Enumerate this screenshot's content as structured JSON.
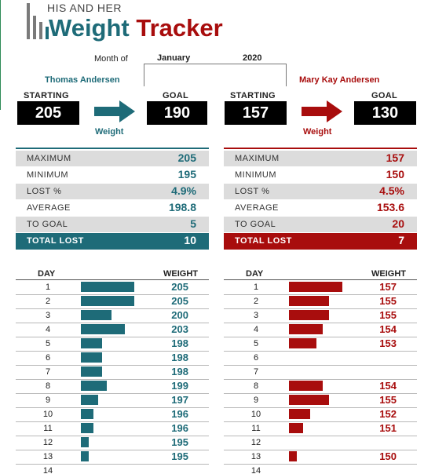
{
  "header": {
    "subtitle": "HIS AND HER",
    "title_word1": "Weight",
    "title_word2": "Tracker",
    "month_label": "Month of",
    "month": "January",
    "year": "2020"
  },
  "colors": {
    "his": "#1e6b78",
    "her": "#a80d0d"
  },
  "his": {
    "name": "Thomas Andersen",
    "starting_label": "STARTING",
    "starting": "205",
    "goal_label": "GOAL",
    "goal": "190",
    "weight_label": "Weight",
    "stats": [
      {
        "label": "MAXIMUM",
        "value": "205"
      },
      {
        "label": "MINIMUM",
        "value": "195"
      },
      {
        "label": "LOST %",
        "value": "4.9%"
      },
      {
        "label": "AVERAGE",
        "value": "198.8"
      },
      {
        "label": "TO GOAL",
        "value": "5"
      }
    ],
    "total_label": "TOTAL LOST",
    "total": "10",
    "table_day_header": "DAY",
    "table_weight_header": "WEIGHT",
    "log": [
      {
        "day": "1",
        "weight": "205"
      },
      {
        "day": "2",
        "weight": "205"
      },
      {
        "day": "3",
        "weight": "200"
      },
      {
        "day": "4",
        "weight": "203"
      },
      {
        "day": "5",
        "weight": "198"
      },
      {
        "day": "6",
        "weight": "198"
      },
      {
        "day": "7",
        "weight": "198"
      },
      {
        "day": "8",
        "weight": "199"
      },
      {
        "day": "9",
        "weight": "197"
      },
      {
        "day": "10",
        "weight": "196"
      },
      {
        "day": "11",
        "weight": "196"
      },
      {
        "day": "12",
        "weight": "195"
      },
      {
        "day": "13",
        "weight": "195"
      },
      {
        "day": "14",
        "weight": ""
      }
    ]
  },
  "her": {
    "name": "Mary Kay Andersen",
    "starting_label": "STARTING",
    "starting": "157",
    "goal_label": "GOAL",
    "goal": "130",
    "weight_label": "Weight",
    "stats": [
      {
        "label": "MAXIMUM",
        "value": "157"
      },
      {
        "label": "MINIMUM",
        "value": "150"
      },
      {
        "label": "LOST %",
        "value": "4.5%"
      },
      {
        "label": "AVERAGE",
        "value": "153.6"
      },
      {
        "label": "TO GOAL",
        "value": "20"
      }
    ],
    "total_label": "TOTAL LOST",
    "total": "7",
    "table_day_header": "DAY",
    "table_weight_header": "WEIGHT",
    "log": [
      {
        "day": "1",
        "weight": "157"
      },
      {
        "day": "2",
        "weight": "155"
      },
      {
        "day": "3",
        "weight": "155"
      },
      {
        "day": "4",
        "weight": "154"
      },
      {
        "day": "5",
        "weight": "153"
      },
      {
        "day": "6",
        "weight": ""
      },
      {
        "day": "7",
        "weight": ""
      },
      {
        "day": "8",
        "weight": "154"
      },
      {
        "day": "9",
        "weight": "155"
      },
      {
        "day": "10",
        "weight": "152"
      },
      {
        "day": "11",
        "weight": "151"
      },
      {
        "day": "12",
        "weight": ""
      },
      {
        "day": "13",
        "weight": "150"
      },
      {
        "day": "14",
        "weight": ""
      }
    ]
  }
}
